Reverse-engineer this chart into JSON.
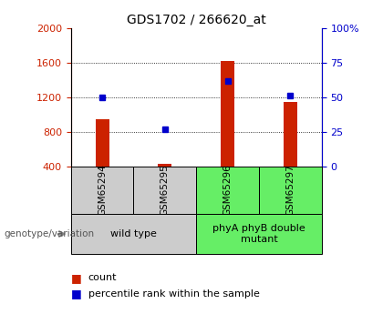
{
  "title": "GDS1702 / 266620_at",
  "samples": [
    "GSM65294",
    "GSM65295",
    "GSM65296",
    "GSM65297"
  ],
  "counts": [
    950,
    430,
    1620,
    1150
  ],
  "percentiles": [
    50,
    27,
    62,
    51
  ],
  "ylim_left": [
    400,
    2000
  ],
  "ylim_right": [
    0,
    100
  ],
  "yticks_left": [
    400,
    800,
    1200,
    1600,
    2000
  ],
  "yticks_right": [
    0,
    25,
    50,
    75,
    100
  ],
  "ytick_right_labels": [
    "0",
    "25",
    "50",
    "75",
    "100%"
  ],
  "grid_values": [
    800,
    1200,
    1600
  ],
  "bar_color": "#cc2200",
  "dot_color": "#0000cc",
  "groups": [
    {
      "label": "wild type",
      "samples": [
        0,
        1
      ],
      "color": "#cccccc"
    },
    {
      "label": "phyA phyB double\nmutant",
      "samples": [
        2,
        3
      ],
      "color": "#66ee66"
    }
  ],
  "sample_bg_color": "#cccccc",
  "genotype_label": "genotype/variation",
  "legend_count_label": "count",
  "legend_percentile_label": "percentile rank within the sample",
  "title_fontsize": 10,
  "tick_fontsize": 8,
  "sample_label_fontsize": 7.5,
  "group_label_fontsize": 8,
  "legend_fontsize": 8
}
